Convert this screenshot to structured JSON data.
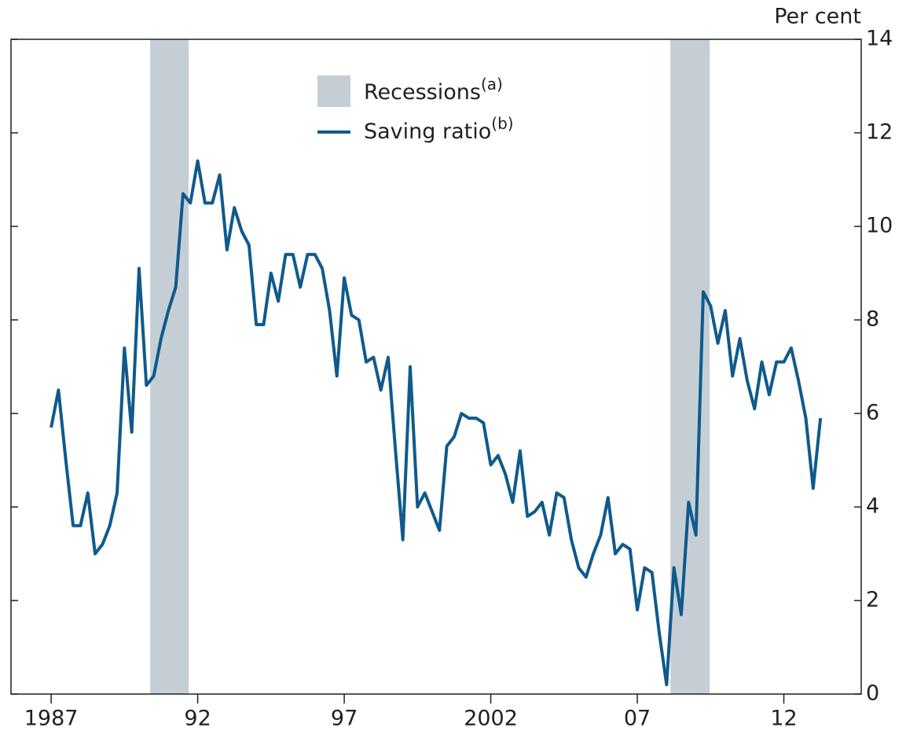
{
  "chart_data": {
    "type": "line",
    "y_axis_label": "Per cent",
    "ylim": [
      0,
      14
    ],
    "yticks": [
      0,
      2,
      4,
      6,
      8,
      10,
      12,
      14
    ],
    "xlim": [
      1985.63,
      2014.64
    ],
    "xticks": [
      {
        "value": 1987,
        "label": "1987"
      },
      {
        "value": 1992,
        "label": "92"
      },
      {
        "value": 1997,
        "label": "97"
      },
      {
        "value": 2002,
        "label": "2002"
      },
      {
        "value": 2007,
        "label": "07"
      },
      {
        "value": 2012,
        "label": "12"
      }
    ],
    "recessions": {
      "name": "Recessions",
      "note": "(a)",
      "color": "#c5ced5",
      "periods": [
        [
          1990.38,
          1991.69
        ],
        [
          2008.13,
          2009.47
        ]
      ]
    },
    "x": [
      1987,
      1987.25,
      1987.5,
      1987.75,
      1988,
      1988.25,
      1988.5,
      1988.75,
      1989,
      1989.25,
      1989.5,
      1989.75,
      1990,
      1990.25,
      1990.5,
      1990.75,
      1991,
      1991.25,
      1991.5,
      1991.75,
      1992,
      1992.25,
      1992.5,
      1992.75,
      1993,
      1993.25,
      1993.5,
      1993.75,
      1994,
      1994.25,
      1994.5,
      1994.75,
      1995,
      1995.25,
      1995.5,
      1995.75,
      1996,
      1996.25,
      1996.5,
      1996.75,
      1997,
      1997.25,
      1997.5,
      1997.75,
      1998,
      1998.25,
      1998.5,
      1998.75,
      1999,
      1999.25,
      1999.5,
      1999.75,
      2000,
      2000.25,
      2000.5,
      2000.75,
      2001,
      2001.25,
      2001.5,
      2001.75,
      2002,
      2002.25,
      2002.5,
      2002.75,
      2003,
      2003.25,
      2003.5,
      2003.75,
      2004,
      2004.25,
      2004.5,
      2004.75,
      2005,
      2005.25,
      2005.5,
      2005.75,
      2006,
      2006.25,
      2006.5,
      2006.75,
      2007,
      2007.25,
      2007.5,
      2007.75,
      2008,
      2008.25,
      2008.5,
      2008.75,
      2009,
      2009.25,
      2009.5,
      2009.75,
      2010,
      2010.25,
      2010.5,
      2010.75,
      2011,
      2011.25,
      2011.5,
      2011.75,
      2012,
      2012.25,
      2012.5,
      2012.75,
      2013,
      2013.25
    ],
    "series": [
      {
        "name": "Saving ratio",
        "note": "(b)",
        "color": "#0f5a8c",
        "values": [
          5.7,
          6.5,
          5.0,
          3.6,
          3.6,
          4.3,
          3.0,
          3.2,
          3.6,
          4.3,
          7.4,
          5.6,
          9.1,
          6.6,
          6.8,
          7.6,
          8.2,
          8.7,
          10.7,
          10.5,
          11.4,
          10.5,
          10.5,
          11.1,
          9.5,
          10.4,
          9.9,
          9.6,
          7.9,
          7.9,
          9.0,
          8.4,
          9.4,
          9.4,
          8.7,
          9.4,
          9.4,
          9.1,
          8.2,
          6.8,
          8.9,
          8.1,
          8.0,
          7.1,
          7.2,
          6.5,
          7.2,
          5.2,
          3.3,
          7.0,
          4.0,
          4.3,
          3.9,
          3.5,
          5.3,
          5.5,
          6.0,
          5.9,
          5.9,
          5.8,
          4.9,
          5.1,
          4.7,
          4.1,
          5.2,
          3.8,
          3.9,
          4.1,
          3.4,
          4.3,
          4.2,
          3.3,
          2.7,
          2.5,
          3.0,
          3.4,
          4.2,
          3.0,
          3.2,
          3.1,
          1.8,
          2.7,
          2.6,
          1.3,
          0.2,
          2.7,
          1.7,
          4.1,
          3.4,
          8.6,
          8.3,
          7.5,
          8.2,
          6.8,
          7.6,
          6.7,
          6.1,
          7.1,
          6.4,
          7.1,
          7.1,
          7.4,
          6.7,
          5.9,
          4.4,
          5.9
        ]
      }
    ]
  }
}
